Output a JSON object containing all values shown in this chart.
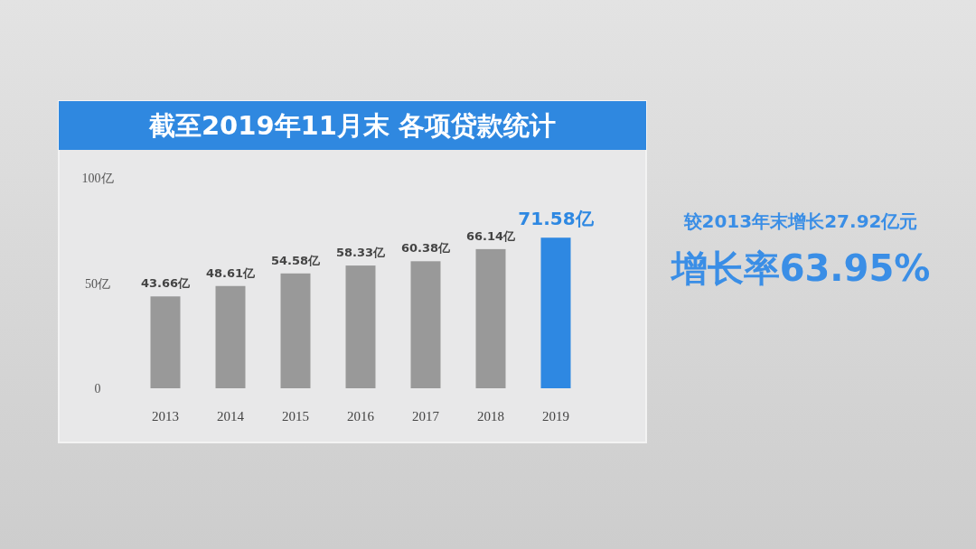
{
  "chart_data": {
    "type": "bar",
    "title": "截至2019年11月末 各项贷款统计",
    "categories": [
      "2013",
      "2014",
      "2015",
      "2016",
      "2017",
      "2018",
      "2019"
    ],
    "values": [
      43.66,
      48.61,
      54.58,
      58.33,
      60.38,
      66.14,
      71.58
    ],
    "colors": [
      "#999999",
      "#999999",
      "#999999",
      "#999999",
      "#999999",
      "#999999",
      "#2e88e2"
    ],
    "value_labels": [
      "43.66亿",
      "48.61亿",
      "54.58亿",
      "58.33亿",
      "60.38亿",
      "66.14亿",
      "71.58亿"
    ],
    "ylim": [
      0,
      100
    ],
    "yticks": [
      0,
      {
        "value": 50,
        "label": "50亿"
      },
      {
        "value": 100,
        "label": "100亿"
      }
    ],
    "annotations": [
      "较2013年末增长27.92亿元",
      "增长率63.95%"
    ]
  }
}
